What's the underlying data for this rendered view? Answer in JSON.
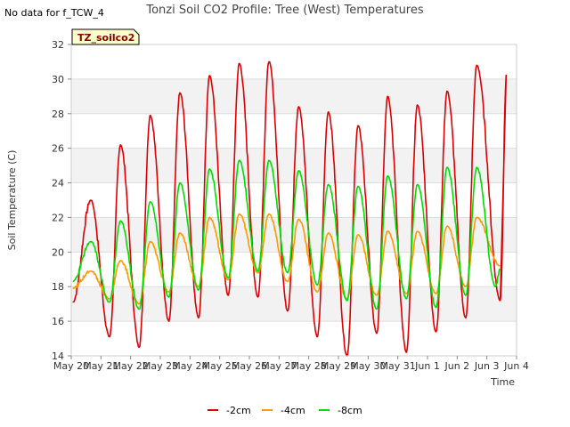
{
  "chart_data": {
    "type": "line",
    "title": "Tonzi Soil CO2 Profile: Tree (West) Temperatures",
    "top_left_note": "No data for f_TCW_4",
    "tag_label": "TZ_soilco2",
    "xlabel": "Time",
    "ylabel": "Soil Temperature (C)",
    "xlim": [
      "May 20",
      "Jun 4"
    ],
    "ylim": [
      14,
      32
    ],
    "x_ticks": [
      "May 20",
      "May 21",
      "May 22",
      "May 23",
      "May 24",
      "May 25",
      "May 26",
      "May 27",
      "May 28",
      "May 29",
      "May 30",
      "May 31",
      "Jun 1",
      "Jun 2",
      "Jun 3",
      "Jun 4"
    ],
    "y_ticks": [
      14,
      16,
      18,
      20,
      22,
      24,
      26,
      28,
      30,
      32
    ],
    "grid": true,
    "legend_position": "bottom",
    "series": [
      {
        "name": "-2cm",
        "color": "#dd0000",
        "daily_max": [
          23.0,
          26.2,
          27.9,
          29.2,
          30.2,
          30.9,
          31.0,
          28.4,
          28.1,
          27.3,
          29.0,
          28.5,
          29.3,
          30.8,
          30.3
        ],
        "daily_min": [
          15.1,
          14.5,
          16.0,
          16.2,
          17.5,
          17.4,
          16.6,
          15.1,
          14.0,
          15.3,
          14.2,
          15.4,
          16.2
        ],
        "start": 17.1,
        "end": 17.2
      },
      {
        "name": "-4cm",
        "color": "#ff9900",
        "daily_max": [
          18.9,
          19.5,
          20.6,
          21.1,
          22.0,
          22.2,
          22.2,
          21.9,
          21.1,
          21.0,
          21.2,
          21.2,
          21.5,
          22.0
        ],
        "daily_min": [
          17.3,
          17.0,
          17.7,
          18.0,
          18.4,
          18.8,
          18.3,
          17.7,
          17.3,
          17.5,
          17.6,
          17.6,
          18.0
        ],
        "start": 17.9,
        "end": 19.2
      },
      {
        "name": "-8cm",
        "color": "#00dd00",
        "daily_max": [
          20.6,
          21.8,
          22.9,
          24.0,
          24.8,
          25.3,
          25.3,
          24.7,
          23.9,
          23.8,
          24.4,
          23.9,
          24.9,
          24.9
        ],
        "daily_min": [
          17.1,
          16.7,
          17.4,
          17.8,
          18.5,
          18.9,
          18.8,
          18.1,
          17.2,
          16.7,
          17.3,
          16.8,
          17.5,
          18.0
        ],
        "start": 18.3,
        "end": 19.0
      }
    ]
  }
}
